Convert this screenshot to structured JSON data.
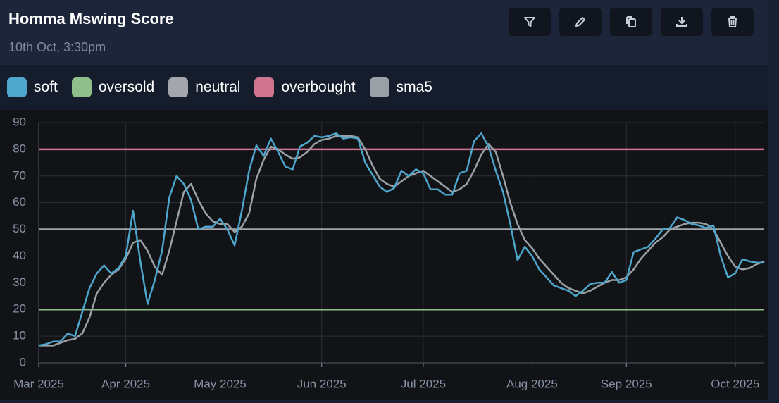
{
  "chart_data": {
    "type": "line",
    "title": "Homma Mswing Score",
    "subtitle": "10th Oct, 3:30pm",
    "categories": [
      "Mar 2025",
      null,
      null,
      null,
      null,
      null,
      null,
      null,
      null,
      null,
      null,
      null,
      "Apr 2025",
      null,
      null,
      null,
      null,
      null,
      null,
      null,
      null,
      null,
      null,
      null,
      null,
      "May 2025",
      null,
      null,
      null,
      null,
      null,
      null,
      null,
      null,
      null,
      null,
      null,
      null,
      null,
      "Jun 2025",
      null,
      null,
      null,
      null,
      null,
      null,
      null,
      null,
      null,
      null,
      null,
      null,
      null,
      "Jul 2025",
      null,
      null,
      null,
      null,
      null,
      null,
      null,
      null,
      null,
      null,
      null,
      null,
      null,
      null,
      "Aug 2025",
      null,
      null,
      null,
      null,
      null,
      null,
      null,
      null,
      null,
      null,
      null,
      null,
      "Sep 2025",
      null,
      null,
      null,
      null,
      null,
      null,
      null,
      null,
      null,
      null,
      null,
      null,
      null,
      null,
      "Oct 2025",
      null,
      null,
      null,
      null
    ],
    "series": [
      {
        "name": "soft",
        "color": "#4ea6cc",
        "values": [
          6.5,
          7,
          8,
          8,
          11,
          10,
          19,
          28,
          33.5,
          36.5,
          33.5,
          35.5,
          40,
          57,
          38,
          22,
          31,
          42,
          62,
          70,
          67,
          61,
          50,
          51,
          51,
          54,
          50,
          44,
          57,
          72,
          81.5,
          77.5,
          84,
          79,
          73.5,
          72.5,
          81,
          82.5,
          85,
          84.5,
          85,
          86,
          84,
          84.5,
          84,
          75,
          70.5,
          66,
          64,
          65.5,
          72,
          70,
          72.5,
          71,
          65,
          65,
          63,
          63,
          71,
          72,
          83,
          86,
          81,
          72,
          64,
          52,
          38.5,
          43.5,
          40,
          35,
          32,
          29,
          28,
          27,
          25,
          27,
          29.5,
          30,
          30,
          34,
          30,
          31,
          41.5,
          42.5,
          43.5,
          46.5,
          50,
          50.5,
          54.5,
          53.5,
          52,
          51.5,
          50.5,
          51.5,
          40,
          32,
          33.5,
          38.8,
          38,
          37.5,
          37.5
        ]
      },
      {
        "name": "oversold",
        "color": "#8fbf8a",
        "value": 20
      },
      {
        "name": "neutral",
        "color": "#a3a7ab",
        "value": 50
      },
      {
        "name": "overbought",
        "color": "#cf7590",
        "value": 80
      },
      {
        "name": "sma5",
        "color": "#9aa1a6",
        "values": [
          6.5,
          6.5,
          6.5,
          7.5,
          8.5,
          9,
          11,
          17,
          26,
          30,
          33,
          35,
          39,
          45,
          46,
          42,
          36,
          33,
          42,
          53,
          64,
          67,
          61,
          56,
          53,
          52,
          52,
          49,
          51,
          56,
          69,
          76,
          81,
          80,
          78,
          76.5,
          77,
          79,
          82,
          83.5,
          84,
          85,
          85,
          85,
          84.5,
          80,
          74,
          69,
          67,
          66,
          68,
          70,
          71,
          72,
          70,
          68,
          66,
          64,
          65,
          67,
          72,
          78,
          82,
          79,
          70,
          60,
          52,
          46,
          43,
          39,
          36,
          33,
          30,
          28,
          27,
          26,
          27,
          28.5,
          30,
          31,
          31,
          32,
          35,
          39,
          42,
          45,
          47,
          50,
          51,
          52,
          52.5,
          52.5,
          52,
          50,
          45,
          40,
          36,
          35,
          35.5,
          37,
          38
        ]
      }
    ],
    "ylim": [
      0,
      90
    ],
    "yticks": [
      0,
      10,
      20,
      30,
      40,
      50,
      60,
      70,
      80,
      90
    ],
    "grid": true
  }
}
